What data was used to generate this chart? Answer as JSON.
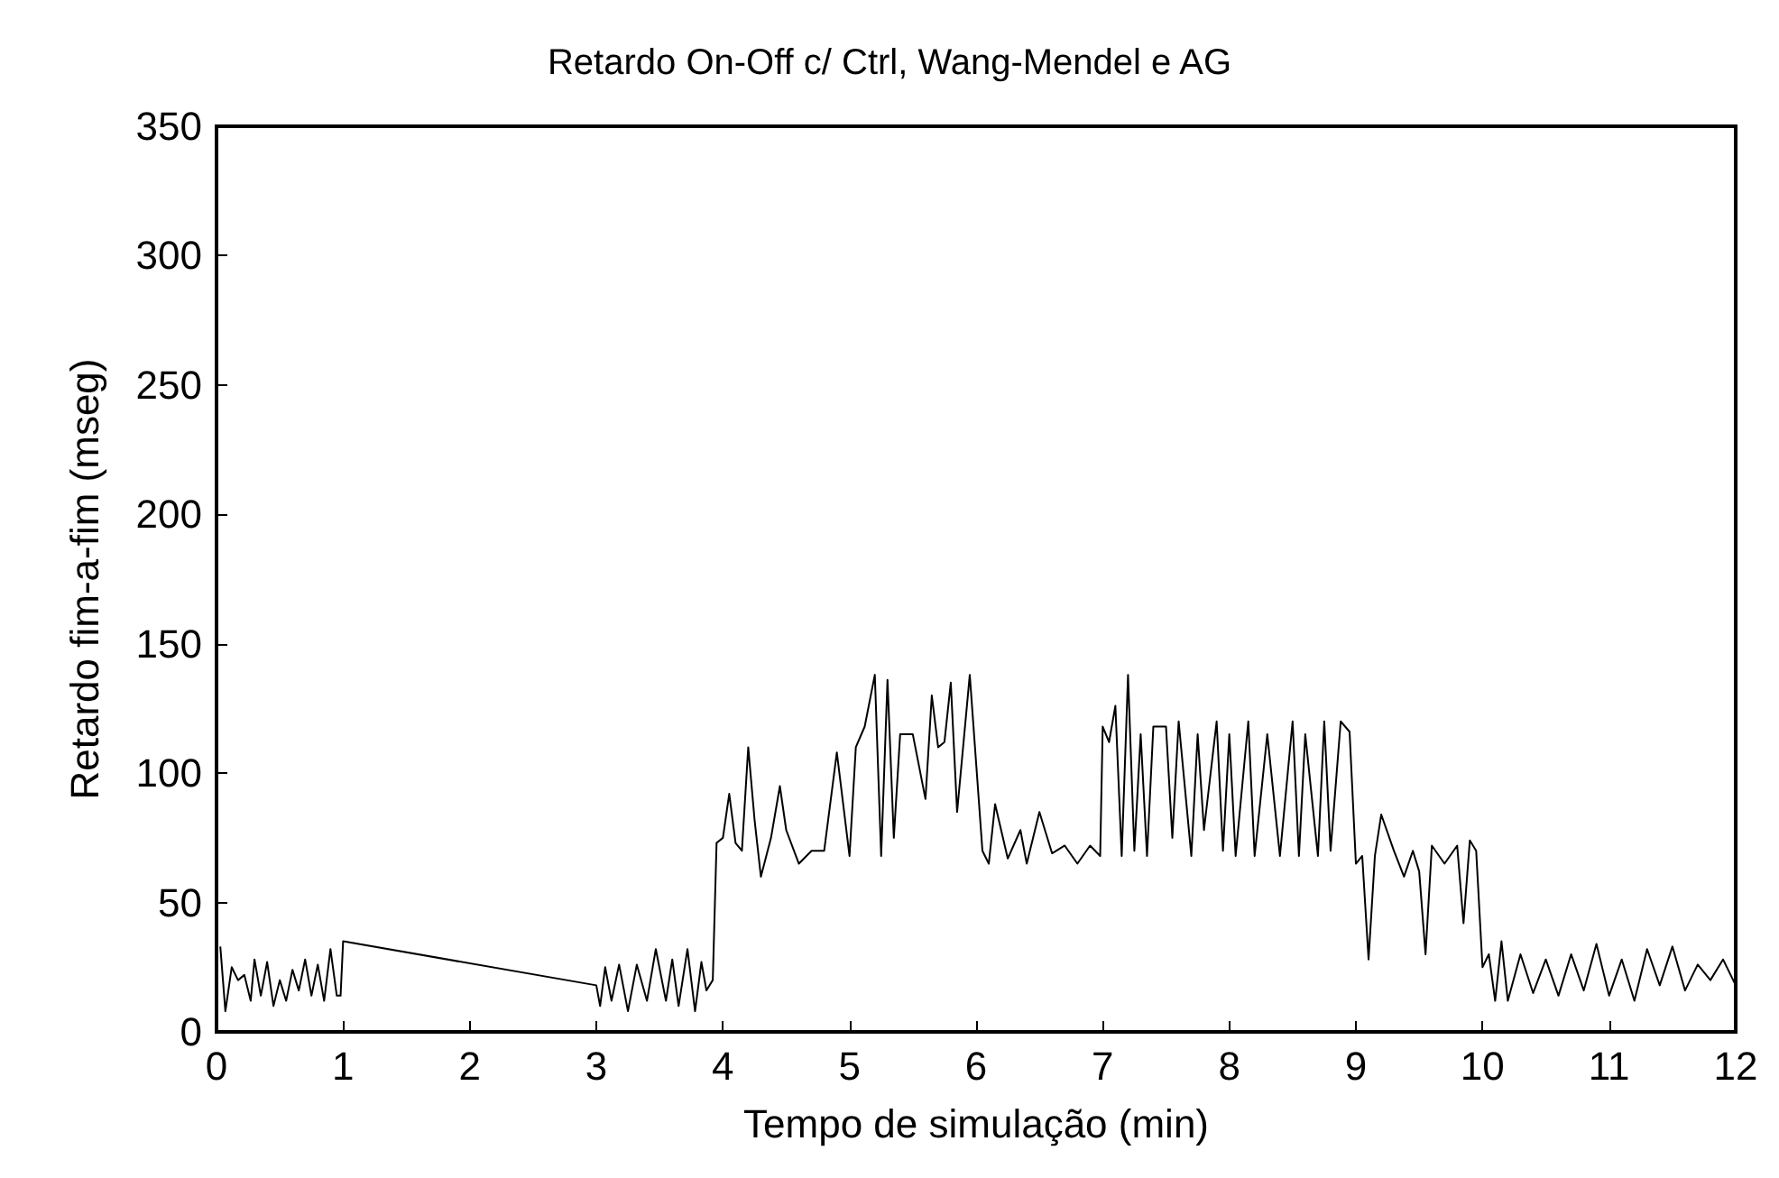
{
  "chart_data": {
    "type": "line",
    "title": "Retardo On-Off c/ Ctrl, Wang-Mendel e AG",
    "xlabel": "Tempo de simulação (min)",
    "ylabel": "Retardo fim-a-fim (mseg)",
    "x": [
      0.03,
      0.07,
      0.12,
      0.17,
      0.22,
      0.27,
      0.3,
      0.35,
      0.4,
      0.45,
      0.5,
      0.55,
      0.6,
      0.65,
      0.7,
      0.75,
      0.8,
      0.85,
      0.9,
      0.95,
      0.98,
      1.0,
      3.0,
      3.03,
      3.07,
      3.12,
      3.18,
      3.25,
      3.32,
      3.4,
      3.47,
      3.55,
      3.6,
      3.65,
      3.72,
      3.78,
      3.83,
      3.87,
      3.92,
      3.95,
      4.0,
      4.05,
      4.1,
      4.15,
      4.2,
      4.25,
      4.3,
      4.38,
      4.45,
      4.5,
      4.6,
      4.7,
      4.8,
      4.9,
      5.0,
      5.05,
      5.12,
      5.2,
      5.25,
      5.3,
      5.35,
      5.4,
      5.5,
      5.6,
      5.65,
      5.7,
      5.75,
      5.8,
      5.85,
      5.95,
      6.05,
      6.1,
      6.15,
      6.25,
      6.35,
      6.4,
      6.5,
      6.6,
      6.7,
      6.8,
      6.9,
      6.98,
      7.0,
      7.05,
      7.1,
      7.15,
      7.2,
      7.25,
      7.3,
      7.35,
      7.4,
      7.5,
      7.55,
      7.6,
      7.7,
      7.75,
      7.8,
      7.9,
      7.95,
      8.0,
      8.05,
      8.15,
      8.2,
      8.3,
      8.4,
      8.5,
      8.55,
      8.6,
      8.7,
      8.75,
      8.8,
      8.88,
      8.95,
      9.0,
      9.05,
      9.1,
      9.15,
      9.2,
      9.3,
      9.38,
      9.45,
      9.5,
      9.55,
      9.6,
      9.7,
      9.8,
      9.85,
      9.9,
      9.95,
      10.0,
      10.05,
      10.1,
      10.15,
      10.2,
      10.3,
      10.4,
      10.5,
      10.6,
      10.7,
      10.8,
      10.9,
      11.0,
      11.1,
      11.2,
      11.3,
      11.4,
      11.5,
      11.6,
      11.7,
      11.8,
      11.9,
      12.0
    ],
    "series": [
      {
        "color": "#000000",
        "values": [
          33,
          8,
          25,
          20,
          22,
          12,
          28,
          14,
          27,
          10,
          20,
          12,
          24,
          16,
          28,
          14,
          26,
          12,
          32,
          14,
          14,
          35,
          18,
          10,
          25,
          12,
          26,
          8,
          26,
          12,
          32,
          12,
          28,
          10,
          32,
          8,
          27,
          16,
          20,
          73,
          75,
          92,
          73,
          70,
          110,
          82,
          60,
          75,
          95,
          78,
          65,
          70,
          70,
          108,
          68,
          110,
          118,
          138,
          68,
          136,
          75,
          115,
          115,
          90,
          130,
          110,
          112,
          135,
          85,
          138,
          70,
          65,
          88,
          67,
          78,
          65,
          85,
          69,
          72,
          65,
          72,
          68,
          118,
          112,
          126,
          68,
          138,
          70,
          115,
          68,
          118,
          118,
          75,
          120,
          68,
          115,
          78,
          120,
          70,
          115,
          68,
          120,
          68,
          115,
          68,
          120,
          68,
          115,
          68,
          120,
          70,
          120,
          116,
          65,
          68,
          28,
          68,
          84,
          70,
          60,
          70,
          62,
          30,
          72,
          65,
          72,
          42,
          74,
          70,
          25,
          30,
          12,
          35,
          12,
          30,
          15,
          28,
          14,
          30,
          16,
          34,
          14,
          28,
          12,
          32,
          18,
          33,
          16,
          26,
          20,
          28,
          18
        ]
      }
    ],
    "xlim": [
      0,
      12
    ],
    "xticks": [
      0,
      1,
      2,
      3,
      4,
      5,
      6,
      7,
      8,
      9,
      10,
      11,
      12
    ],
    "ylim": [
      0,
      350
    ],
    "yticks": [
      0,
      50,
      100,
      150,
      200,
      250,
      300,
      350
    ],
    "grid": false,
    "marker": "none",
    "line_style": "solid"
  }
}
